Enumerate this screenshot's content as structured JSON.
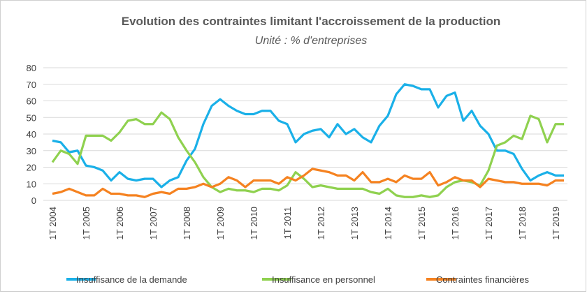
{
  "chart_data": {
    "type": "line",
    "title": "Evolution des contraintes limitant l'accroissement de la production",
    "subtitle": "Unité : % d'entreprises",
    "categories": [
      "1T 2004",
      null,
      null,
      null,
      "1T 2005",
      null,
      null,
      null,
      "1T 2006",
      null,
      null,
      null,
      "1T 2007",
      null,
      null,
      null,
      "1T 2008",
      null,
      null,
      null,
      "1T 2009",
      null,
      null,
      null,
      "1T 2010",
      null,
      null,
      null,
      "1T 2011",
      null,
      null,
      null,
      "1T 2012",
      null,
      null,
      null,
      "1T 2013",
      null,
      null,
      null,
      "1T 2014",
      null,
      null,
      null,
      "1T 2015",
      null,
      null,
      null,
      "1T 2016",
      null,
      null,
      null,
      "1T 2017",
      null,
      null,
      null,
      "1T 2018",
      null,
      null,
      null,
      "1T 2019",
      null
    ],
    "series": [
      {
        "name": "Insuffisance de la demande",
        "color": "#1ab0e8",
        "values": [
          36,
          35,
          29,
          30,
          21,
          20,
          18,
          12,
          17,
          13,
          12,
          13,
          13,
          8,
          12,
          14,
          24,
          31,
          46,
          57,
          61,
          57,
          54,
          52,
          52,
          54,
          54,
          48,
          46,
          35,
          40,
          42,
          43,
          38,
          46,
          40,
          43,
          38,
          35,
          45,
          51,
          64,
          70,
          69,
          67,
          67,
          56,
          63,
          65,
          48,
          54,
          45,
          40,
          30,
          30,
          28,
          19,
          12,
          15,
          17,
          15,
          15
        ]
      },
      {
        "name": "Insuffisance en personnel",
        "color": "#8fd14f",
        "values": [
          23,
          30,
          28,
          22,
          39,
          39,
          39,
          36,
          41,
          48,
          49,
          46,
          46,
          53,
          49,
          38,
          30,
          23,
          14,
          8,
          5,
          7,
          6,
          6,
          5,
          7,
          7,
          6,
          9,
          17,
          13,
          8,
          9,
          8,
          7,
          7,
          7,
          7,
          5,
          4,
          7,
          3,
          2,
          2,
          3,
          2,
          3,
          8,
          11,
          12,
          11,
          9,
          18,
          33,
          35,
          39,
          37,
          51,
          49,
          35,
          46,
          46
        ]
      },
      {
        "name": "Contraintes financières",
        "color": "#f58220",
        "values": [
          4,
          5,
          7,
          5,
          3,
          3,
          7,
          4,
          4,
          3,
          3,
          2,
          4,
          5,
          4,
          7,
          7,
          8,
          10,
          8,
          10,
          14,
          12,
          8,
          12,
          12,
          12,
          10,
          14,
          12,
          15,
          19,
          18,
          17,
          15,
          15,
          12,
          17,
          11,
          11,
          13,
          11,
          15,
          13,
          13,
          17,
          9,
          11,
          14,
          12,
          12,
          8,
          13,
          12,
          11,
          11,
          10,
          10,
          10,
          9,
          12,
          12
        ]
      }
    ],
    "ylim": [
      0,
      80
    ],
    "yticks": [
      0,
      10,
      20,
      30,
      40,
      50,
      60,
      70,
      80
    ],
    "grid": true
  }
}
